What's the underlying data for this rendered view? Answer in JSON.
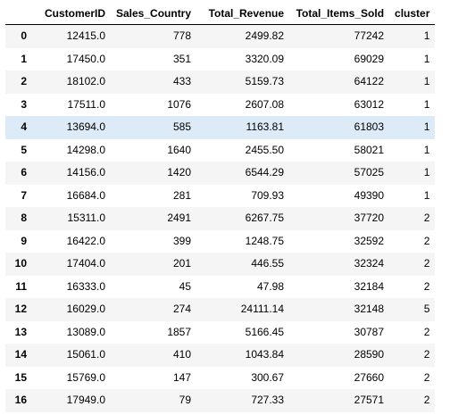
{
  "table": {
    "columns": [
      "",
      "CustomerID",
      "Sales_Country",
      "Total_Revenue",
      "Total_Items_Sold",
      "cluster"
    ],
    "highlighted_row_index": 4,
    "rows": [
      {
        "idx": "0",
        "CustomerID": "12415.0",
        "Sales_Country": "778",
        "Total_Revenue": "2499.82",
        "Total_Items_Sold": "77242",
        "cluster": "1"
      },
      {
        "idx": "1",
        "CustomerID": "17450.0",
        "Sales_Country": "351",
        "Total_Revenue": "3320.09",
        "Total_Items_Sold": "69029",
        "cluster": "1"
      },
      {
        "idx": "2",
        "CustomerID": "18102.0",
        "Sales_Country": "433",
        "Total_Revenue": "5159.73",
        "Total_Items_Sold": "64122",
        "cluster": "1"
      },
      {
        "idx": "3",
        "CustomerID": "17511.0",
        "Sales_Country": "1076",
        "Total_Revenue": "2607.08",
        "Total_Items_Sold": "63012",
        "cluster": "1"
      },
      {
        "idx": "4",
        "CustomerID": "13694.0",
        "Sales_Country": "585",
        "Total_Revenue": "1163.81",
        "Total_Items_Sold": "61803",
        "cluster": "1"
      },
      {
        "idx": "5",
        "CustomerID": "14298.0",
        "Sales_Country": "1640",
        "Total_Revenue": "2455.50",
        "Total_Items_Sold": "58021",
        "cluster": "1"
      },
      {
        "idx": "6",
        "CustomerID": "14156.0",
        "Sales_Country": "1420",
        "Total_Revenue": "6544.29",
        "Total_Items_Sold": "57025",
        "cluster": "1"
      },
      {
        "idx": "7",
        "CustomerID": "16684.0",
        "Sales_Country": "281",
        "Total_Revenue": "709.93",
        "Total_Items_Sold": "49390",
        "cluster": "1"
      },
      {
        "idx": "8",
        "CustomerID": "15311.0",
        "Sales_Country": "2491",
        "Total_Revenue": "6267.75",
        "Total_Items_Sold": "37720",
        "cluster": "2"
      },
      {
        "idx": "9",
        "CustomerID": "16422.0",
        "Sales_Country": "399",
        "Total_Revenue": "1248.75",
        "Total_Items_Sold": "32592",
        "cluster": "2"
      },
      {
        "idx": "10",
        "CustomerID": "17404.0",
        "Sales_Country": "201",
        "Total_Revenue": "446.55",
        "Total_Items_Sold": "32324",
        "cluster": "2"
      },
      {
        "idx": "11",
        "CustomerID": "16333.0",
        "Sales_Country": "45",
        "Total_Revenue": "47.98",
        "Total_Items_Sold": "32184",
        "cluster": "2"
      },
      {
        "idx": "12",
        "CustomerID": "16029.0",
        "Sales_Country": "274",
        "Total_Revenue": "24111.14",
        "Total_Items_Sold": "32148",
        "cluster": "5"
      },
      {
        "idx": "13",
        "CustomerID": "13089.0",
        "Sales_Country": "1857",
        "Total_Revenue": "5166.45",
        "Total_Items_Sold": "30787",
        "cluster": "2"
      },
      {
        "idx": "14",
        "CustomerID": "15061.0",
        "Sales_Country": "410",
        "Total_Revenue": "1043.84",
        "Total_Items_Sold": "28590",
        "cluster": "2"
      },
      {
        "idx": "15",
        "CustomerID": "15769.0",
        "Sales_Country": "147",
        "Total_Revenue": "300.67",
        "Total_Items_Sold": "27660",
        "cluster": "2"
      },
      {
        "idx": "16",
        "CustomerID": "17949.0",
        "Sales_Country": "79",
        "Total_Revenue": "727.33",
        "Total_Items_Sold": "27571",
        "cluster": "2"
      }
    ]
  },
  "colors": {
    "row_odd": "#f5f5f5",
    "row_even": "#ffffff",
    "row_hover": "#dcebf7",
    "header_border": "#000000"
  }
}
